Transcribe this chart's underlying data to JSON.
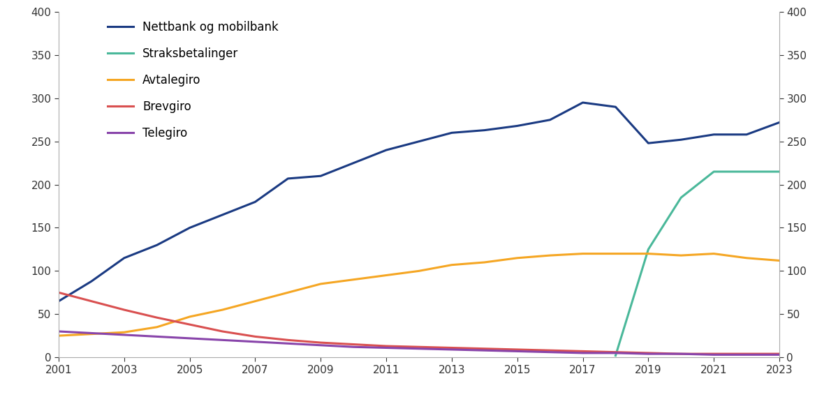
{
  "years": [
    2001,
    2002,
    2003,
    2004,
    2005,
    2006,
    2007,
    2008,
    2009,
    2010,
    2011,
    2012,
    2013,
    2014,
    2015,
    2016,
    2017,
    2018,
    2019,
    2020,
    2021,
    2022,
    2023
  ],
  "nettbank": [
    65,
    88,
    115,
    130,
    150,
    165,
    180,
    207,
    210,
    225,
    240,
    250,
    260,
    263,
    268,
    275,
    295,
    290,
    248,
    252,
    258,
    258,
    272
  ],
  "straks": [
    null,
    null,
    null,
    null,
    null,
    null,
    null,
    null,
    null,
    null,
    null,
    null,
    null,
    null,
    null,
    null,
    null,
    2,
    125,
    185,
    215,
    215,
    215
  ],
  "avtalegiro": [
    25,
    27,
    29,
    35,
    47,
    55,
    65,
    75,
    85,
    90,
    95,
    100,
    107,
    110,
    115,
    118,
    120,
    120,
    120,
    118,
    120,
    115,
    112
  ],
  "brevgiro": [
    75,
    65,
    55,
    46,
    38,
    30,
    24,
    20,
    17,
    15,
    13,
    12,
    11,
    10,
    9,
    8,
    7,
    6,
    5,
    4,
    4,
    4,
    4
  ],
  "telegiro": [
    30,
    28,
    26,
    24,
    22,
    20,
    18,
    16,
    14,
    12,
    11,
    10,
    9,
    8,
    7,
    6,
    5,
    5,
    4,
    4,
    3,
    3,
    3
  ],
  "colors": {
    "nettbank": "#1a3a82",
    "straks": "#4ab89a",
    "avtalegiro": "#f5a623",
    "brevgiro": "#d95050",
    "brevgiro2": "#cc4444",
    "telegiro": "#8844aa"
  },
  "ylim": [
    0,
    400
  ],
  "yticks": [
    0,
    50,
    100,
    150,
    200,
    250,
    300,
    350,
    400
  ],
  "xlim": [
    2001,
    2023
  ],
  "xticks": [
    2001,
    2003,
    2005,
    2007,
    2009,
    2011,
    2013,
    2015,
    2017,
    2019,
    2021,
    2023
  ],
  "legend_labels": [
    "Nettbank og mobilbank",
    "Straksbetalinger",
    "Avtalegiro",
    "Brevgiro",
    "Telegiro"
  ],
  "linewidth": 2.2
}
